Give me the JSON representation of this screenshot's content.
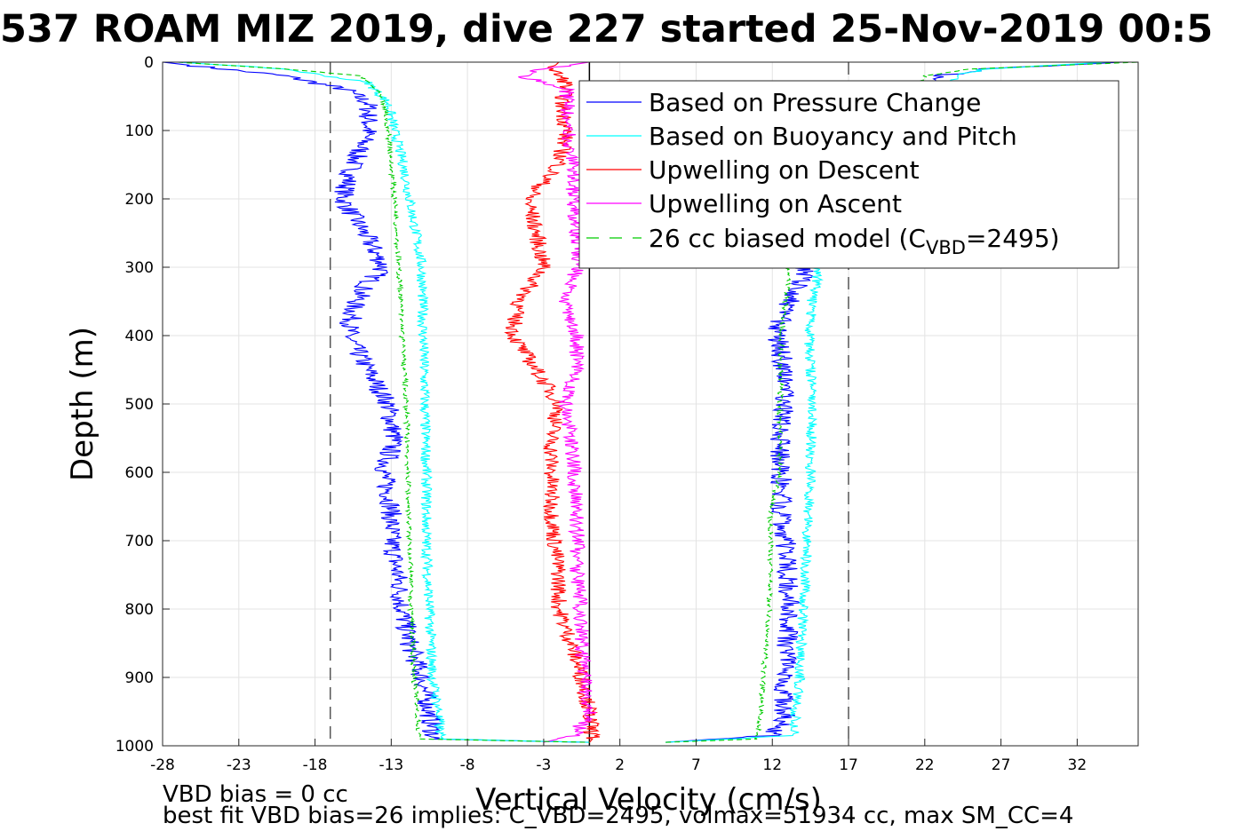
{
  "chart_data": {
    "type": "line",
    "title": "537 ROAM MIZ 2019, dive 227 started 25-Nov-2019 00:5",
    "xlabel": "Vertical Velocity (cm/s)",
    "ylabel": "Depth (m)",
    "xlim": [
      -28,
      36
    ],
    "ylim": [
      0,
      1000
    ],
    "y_reversed": true,
    "grid": true,
    "legend_placement": "top-right",
    "xticks": [
      -28,
      -23,
      -18,
      -13,
      -8,
      -3,
      2,
      7,
      12,
      17,
      22,
      27,
      32
    ],
    "yticks": [
      0,
      100,
      200,
      300,
      400,
      500,
      600,
      700,
      800,
      900,
      1000
    ],
    "reference_lines": [
      {
        "x": -17,
        "style": "dashed",
        "color": "#555555"
      },
      {
        "x": 0,
        "style": "solid",
        "color": "#000000"
      },
      {
        "x": 17,
        "style": "dashed",
        "color": "#555555"
      }
    ],
    "series": [
      {
        "name": "Based on Pressure Change",
        "color": "#0000ff",
        "style": "solid",
        "descent": {
          "depth": [
            0,
            10,
            20,
            40,
            60,
            100,
            150,
            200,
            260,
            300,
            330,
            360,
            400,
            440,
            500,
            550,
            600,
            650,
            700,
            760,
            800,
            850,
            900,
            950,
            990,
            995
          ],
          "velocity": [
            -28,
            -24,
            -20,
            -16,
            -14.5,
            -14.5,
            -15.5,
            -16.2,
            -14.5,
            -13.5,
            -14.8,
            -15.5,
            -15.8,
            -14.8,
            -13.2,
            -12.8,
            -13.5,
            -13.0,
            -13.0,
            -12.5,
            -12.3,
            -11.8,
            -11.0,
            -10.5,
            -10.2,
            0
          ]
        },
        "ascent": {
          "depth": [
            995,
            985,
            960,
            900,
            850,
            800,
            750,
            700,
            650,
            600,
            550,
            500,
            450,
            400,
            360,
            330,
            310,
            300,
            20,
            10,
            0
          ],
          "velocity": [
            5,
            11.8,
            12.8,
            12.8,
            13.0,
            13.2,
            13.0,
            12.9,
            12.6,
            12.6,
            12.5,
            12.8,
            12.8,
            12.3,
            12.8,
            13.8,
            14.0,
            14.0,
            23.0,
            26.0,
            35.0
          ]
        }
      },
      {
        "name": "Based on Buoyancy and Pitch",
        "color": "#00ffff",
        "style": "solid",
        "descent": {
          "depth": [
            0,
            10,
            30,
            60,
            100,
            150,
            200,
            260,
            300,
            400,
            500,
            600,
            700,
            800,
            900,
            950,
            990,
            995
          ],
          "velocity": [
            -27,
            -20,
            -14.5,
            -13.2,
            -12.8,
            -12.2,
            -11.8,
            -11.3,
            -11.0,
            -10.9,
            -10.8,
            -10.7,
            -10.7,
            -10.5,
            -10.3,
            -9.9,
            -9.8,
            0
          ]
        },
        "ascent": {
          "depth": [
            995,
            985,
            950,
            900,
            800,
            700,
            600,
            500,
            400,
            350,
            320,
            300,
            20,
            10,
            0
          ],
          "velocity": [
            5,
            13.5,
            13.5,
            13.8,
            14.0,
            14.3,
            14.5,
            14.6,
            14.4,
            14.6,
            14.9,
            15.0,
            24.0,
            26.0,
            34.0
          ]
        }
      },
      {
        "name": "Upwelling on Descent",
        "color": "#ff0000",
        "style": "solid",
        "descent": {
          "depth": [
            0,
            10,
            30,
            60,
            100,
            150,
            200,
            250,
            300,
            330,
            360,
            400,
            450,
            500,
            550,
            600,
            650,
            700,
            750,
            800,
            850,
            900,
            950,
            990,
            995
          ],
          "velocity": [
            -2,
            -2.5,
            -1.5,
            -1.8,
            -1.5,
            -2.0,
            -4.0,
            -3.5,
            -3.0,
            -4.0,
            -4.8,
            -5.0,
            -3.5,
            -2.0,
            -2.5,
            -2.5,
            -2.5,
            -2.3,
            -2.0,
            -2.0,
            -1.2,
            -0.5,
            0.0,
            0.2,
            0.0
          ]
        }
      },
      {
        "name": "Upwelling on Ascent",
        "color": "#ff00ff",
        "style": "solid",
        "ascent": {
          "depth": [
            995,
            985,
            950,
            900,
            850,
            800,
            750,
            700,
            650,
            600,
            550,
            500,
            450,
            400,
            380,
            350,
            320,
            300,
            40,
            20,
            10,
            0
          ],
          "velocity": [
            -3,
            -1.0,
            0.0,
            -0.3,
            -0.5,
            -0.6,
            -0.8,
            -0.8,
            -0.9,
            -1.0,
            -1.2,
            -1.6,
            -0.9,
            -0.8,
            -1.2,
            -1.5,
            -1.2,
            -0.7,
            -1.5,
            -4.5,
            -3.0,
            0.0
          ]
        }
      },
      {
        "name": "26 cc biased model (C_VBD=2495)",
        "color": "#00cc00",
        "style": "dashed",
        "descent": {
          "depth": [
            0,
            10,
            20,
            40,
            60,
            100,
            200,
            300,
            400,
            500,
            600,
            700,
            800,
            900,
            950,
            990,
            995
          ],
          "velocity": [
            -27,
            -20,
            -15,
            -14,
            -13.5,
            -13.2,
            -12.8,
            -12.5,
            -12.3,
            -12.0,
            -11.9,
            -11.8,
            -11.7,
            -11.5,
            -11.3,
            -11.2,
            0
          ]
        },
        "ascent": {
          "depth": [
            995,
            990,
            950,
            900,
            850,
            800,
            700,
            650,
            600,
            500,
            400,
            330,
            300,
            20,
            10,
            0
          ],
          "velocity": [
            5,
            11.0,
            11.2,
            11.4,
            11.6,
            11.8,
            11.9,
            11.9,
            12.5,
            12.5,
            12.6,
            13.0,
            13.0,
            22.0,
            25.0,
            36.0
          ]
        }
      }
    ],
    "legend": [
      "Based on Pressure Change",
      "Based on Buoyancy and Pitch",
      "Upwelling on Descent",
      "Upwelling on Ascent"
    ],
    "legend_model": {
      "prefix": "26 cc biased model (C",
      "sub": "VBD",
      "suffix": "=2495)"
    },
    "notes": [
      "VBD bias = 0 cc",
      "best fit VBD bias=26 implies: C_VBD=2495, volmax=51934 cc, max SM_CC=4"
    ]
  },
  "colors": {
    "pressure": "#0000ff",
    "buoyancy": "#00ffff",
    "descent": "#ff0000",
    "ascent": "#ff00ff",
    "model": "#00cc00"
  }
}
